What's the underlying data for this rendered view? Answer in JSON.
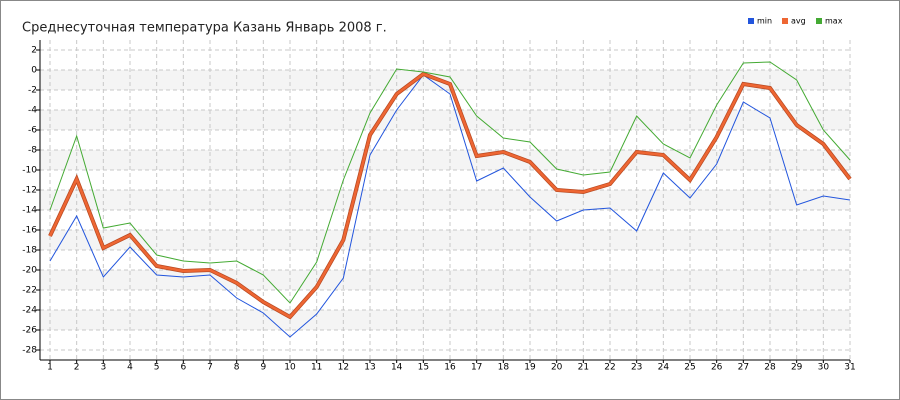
{
  "chart_data": {
    "type": "line",
    "title": "Среднесуточная температура Казань  Январь 2008 г.",
    "x": [
      1,
      2,
      3,
      4,
      5,
      6,
      7,
      8,
      9,
      10,
      11,
      12,
      13,
      14,
      15,
      16,
      17,
      18,
      19,
      20,
      21,
      22,
      23,
      24,
      25,
      26,
      27,
      28,
      29,
      30,
      31
    ],
    "xlim": [
      1,
      31
    ],
    "xticks": [
      1,
      2,
      3,
      4,
      5,
      6,
      7,
      8,
      9,
      10,
      11,
      12,
      13,
      14,
      15,
      16,
      17,
      18,
      19,
      20,
      21,
      22,
      23,
      24,
      25,
      26,
      27,
      28,
      29,
      30,
      31
    ],
    "ylim": [
      -28,
      2
    ],
    "yticks": [
      2,
      0,
      -2,
      -4,
      -6,
      -8,
      -10,
      -12,
      -14,
      -16,
      -18,
      -20,
      -22,
      -24,
      -26,
      -28
    ],
    "grid": true,
    "legend": "top-right",
    "series": [
      {
        "name": "min",
        "color": "#2255dd",
        "values": [
          -19.1,
          -14.6,
          -20.7,
          -17.7,
          -20.5,
          -20.7,
          -20.5,
          -22.8,
          -24.3,
          -26.7,
          -24.4,
          -20.8,
          -8.5,
          -4.0,
          -0.5,
          -2.4,
          -11.1,
          -9.8,
          -12.7,
          -15.1,
          -14.0,
          -13.8,
          -16.1,
          -10.3,
          -12.8,
          -9.4,
          -3.2,
          -4.8,
          -13.5,
          -12.6,
          -13.0
        ]
      },
      {
        "name": "avg",
        "color": "#ee6633",
        "values": [
          -16.6,
          -10.9,
          -17.8,
          -16.5,
          -19.6,
          -20.1,
          -20.0,
          -21.3,
          -23.2,
          -24.7,
          -21.7,
          -17.0,
          -6.5,
          -2.4,
          -0.4,
          -1.4,
          -8.6,
          -8.2,
          -9.2,
          -12.0,
          -12.2,
          -11.4,
          -8.2,
          -8.5,
          -11.0,
          -6.7,
          -1.4,
          -1.8,
          -5.5,
          -7.4,
          -10.9
        ]
      },
      {
        "name": "max",
        "color": "#44aa33",
        "values": [
          -14.0,
          -6.6,
          -15.8,
          -15.3,
          -18.5,
          -19.1,
          -19.3,
          -19.1,
          -20.5,
          -23.3,
          -19.2,
          -11.0,
          -4.3,
          0.1,
          -0.2,
          -0.7,
          -4.6,
          -6.8,
          -7.2,
          -9.9,
          -10.5,
          -10.2,
          -4.6,
          -7.4,
          -8.8,
          -3.5,
          0.7,
          0.8,
          -1.0,
          -6.0,
          -9.0
        ]
      }
    ]
  }
}
